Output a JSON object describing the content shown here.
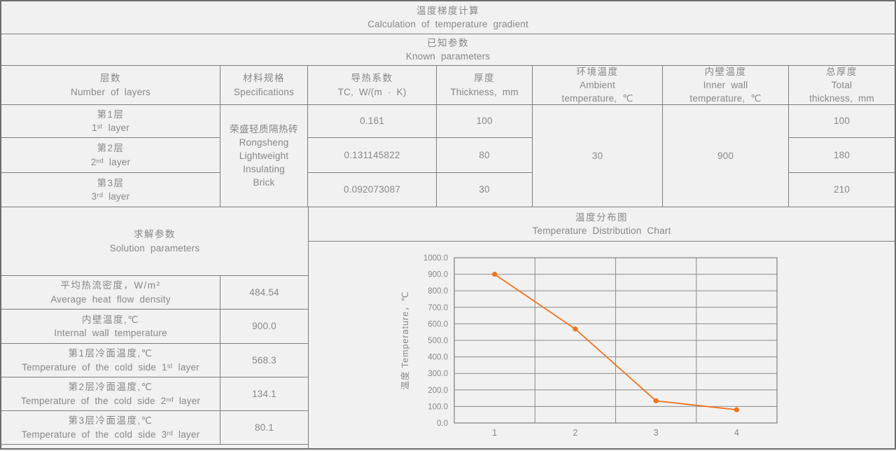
{
  "title": {
    "cn": "温度梯度计算",
    "en": "Calculation of temperature gradient"
  },
  "known": {
    "cn": "已知参数",
    "en": "Known parameters",
    "headers": [
      {
        "cn": "层数",
        "en": "Number of layers"
      },
      {
        "cn": "材料规格",
        "en": "Specifications"
      },
      {
        "cn": "导热系数",
        "en": "TC, W/(m · K)"
      },
      {
        "cn": "厚度",
        "en": "Thickness, mm"
      },
      {
        "cn": "环境温度",
        "en": "Ambient\ntemperature, ℃"
      },
      {
        "cn": "内壁温度",
        "en": "Inner wall\ntemperature, ℃"
      },
      {
        "cn": "总厚度",
        "en": "Total\nthickness, mm"
      }
    ],
    "material": {
      "cn": "荣盛轻质隔热砖",
      "en": "Rongsheng\nLightweight\nInsulating\nBrick"
    },
    "ambient_temperature": "30",
    "inner_wall_temperature": "900",
    "rows": [
      {
        "layer_cn": "第1层",
        "layer_en": "1ˢᵗ layer",
        "tc": "0.161",
        "thickness": "100",
        "total": "100"
      },
      {
        "layer_cn": "第2层",
        "layer_en": "2ⁿᵈ layer",
        "tc": "0.131145822",
        "thickness": "80",
        "total": "180"
      },
      {
        "layer_cn": "第3层",
        "layer_en": "3ʳᵈ layer",
        "tc": "0.092073087",
        "thickness": "30",
        "total": "210"
      }
    ]
  },
  "solution": {
    "cn": "求解参数",
    "en": "Solution parameters",
    "rows": [
      {
        "label_cn": "平均热流密度，W/m²",
        "label_en": "Average heat flow density",
        "value": "484.54"
      },
      {
        "label_cn": "内壁温度,℃",
        "label_en": "Internal wall temperature",
        "value": "900.0"
      },
      {
        "label_cn": "第1层冷面温度,℃",
        "label_en": "Temperature of the cold side 1ˢᵗ layer",
        "value": "568.3"
      },
      {
        "label_cn": "第2层冷面温度,℃",
        "label_en": "Temperature of the cold side 2ⁿᵈ layer",
        "value": "134.1"
      },
      {
        "label_cn": "第3层冷面温度,℃",
        "label_en": "Temperature of the cold side 3ʳᵈ layer",
        "value": "80.1"
      }
    ]
  },
  "chart": {
    "title_cn": "温度分布图",
    "title_en": "Temperature Distribution Chart"
  },
  "chart_data": {
    "type": "line",
    "x": [
      1,
      2,
      3,
      4
    ],
    "xticks": [
      "1",
      "2",
      "3",
      "4"
    ],
    "values": [
      900.0,
      568.3,
      134.1,
      80.1
    ],
    "title": "温度分布图 Temperature Distribution Chart",
    "xlabel": "",
    "ylabel": "温度 Temperature，℃",
    "ylim": [
      0,
      1000
    ],
    "ytick_step": 100,
    "ytick_format_decimals": 1,
    "grid": true,
    "legend_position": "none",
    "line_color": "#f0731d",
    "marker": "circle"
  },
  "colors": {
    "accent_orange": "#f0731d",
    "grid_gray": "#8a8a8a",
    "border_gray": "#7e7e7e",
    "text_gray": "#878787",
    "background": "#f1f1f1"
  }
}
